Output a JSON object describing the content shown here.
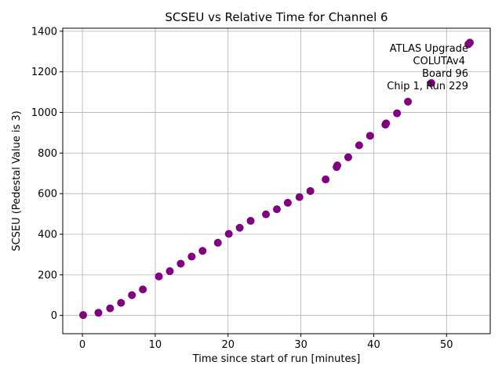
{
  "chart_data": {
    "type": "scatter",
    "title": "SCSEU vs Relative Time for Channel 6",
    "xlabel": "Time since start of run [minutes]",
    "ylabel": "SCSEU (Pedestal Value is 3)",
    "xlim": [
      -2.7,
      56
    ],
    "ylim": [
      -90,
      1415
    ],
    "xticks": [
      0,
      10,
      20,
      30,
      40,
      50
    ],
    "yticks": [
      0,
      200,
      400,
      600,
      800,
      1000,
      1200,
      1400
    ],
    "grid": true,
    "marker_color": "#800080",
    "annotation": [
      "ATLAS Upgrade",
      "COLUTAv4",
      "Board 96",
      "Chip 1, Run 229"
    ],
    "points": [
      {
        "x": 0.1,
        "y": 2
      },
      {
        "x": 2.2,
        "y": 13
      },
      {
        "x": 3.8,
        "y": 35
      },
      {
        "x": 5.3,
        "y": 62
      },
      {
        "x": 6.8,
        "y": 100
      },
      {
        "x": 8.3,
        "y": 128
      },
      {
        "x": 10.5,
        "y": 192
      },
      {
        "x": 12.0,
        "y": 218
      },
      {
        "x": 13.5,
        "y": 255
      },
      {
        "x": 15.0,
        "y": 290
      },
      {
        "x": 16.5,
        "y": 318
      },
      {
        "x": 18.6,
        "y": 358
      },
      {
        "x": 20.1,
        "y": 402
      },
      {
        "x": 21.6,
        "y": 432
      },
      {
        "x": 23.1,
        "y": 466
      },
      {
        "x": 25.2,
        "y": 498
      },
      {
        "x": 26.7,
        "y": 523
      },
      {
        "x": 28.2,
        "y": 555
      },
      {
        "x": 29.8,
        "y": 583
      },
      {
        "x": 31.3,
        "y": 613
      },
      {
        "x": 33.4,
        "y": 670
      },
      {
        "x": 34.9,
        "y": 731
      },
      {
        "x": 35.0,
        "y": 739
      },
      {
        "x": 36.5,
        "y": 779
      },
      {
        "x": 38.0,
        "y": 838
      },
      {
        "x": 39.5,
        "y": 885
      },
      {
        "x": 41.6,
        "y": 940
      },
      {
        "x": 41.7,
        "y": 946
      },
      {
        "x": 43.2,
        "y": 996
      },
      {
        "x": 44.7,
        "y": 1053
      },
      {
        "x": 47.9,
        "y": 1145
      },
      {
        "x": 53.0,
        "y": 1336
      },
      {
        "x": 53.2,
        "y": 1344
      }
    ]
  }
}
